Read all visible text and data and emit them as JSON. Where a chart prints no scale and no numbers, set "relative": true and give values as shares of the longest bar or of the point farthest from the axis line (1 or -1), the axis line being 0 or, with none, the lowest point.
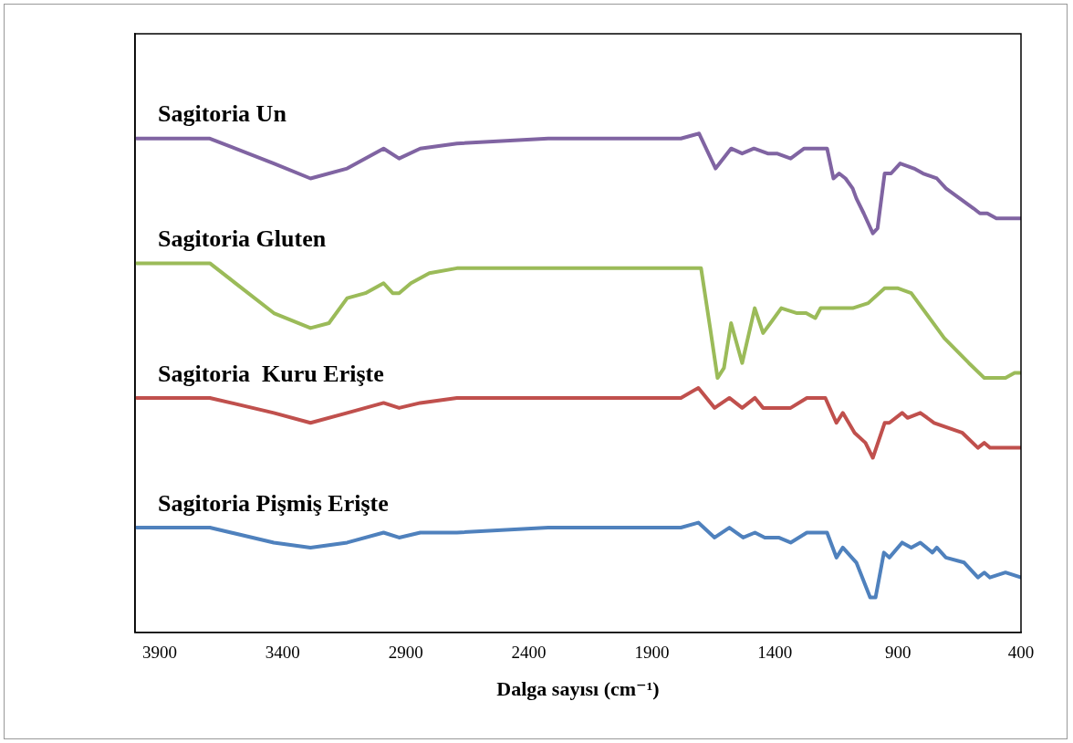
{
  "chart_data": {
    "type": "line",
    "relative": true,
    "xlabel": "Dalga sayısı (cm⁻¹)",
    "xlim": [
      4000,
      400
    ],
    "xticks": [
      3900,
      3400,
      2900,
      2400,
      1900,
      1400,
      900,
      400
    ],
    "series": [
      {
        "name": "Sagitoria Un",
        "color": "#8064a2",
        "x": [
          3993,
          3696,
          3436,
          3287,
          3138,
          2990,
          2927,
          2841,
          2692,
          2321,
          1949,
          1782,
          1708,
          1641,
          1578,
          1533,
          1485,
          1429,
          1392,
          1336,
          1281,
          1225,
          1188,
          1162,
          1139,
          1113,
          1084,
          1069,
          1039,
          1002,
          983,
          954,
          928,
          891,
          835,
          798,
          742,
          705,
          649,
          593,
          567,
          537,
          500,
          463,
          400
        ],
        "values": [
          0.99,
          0.99,
          0.94,
          0.91,
          0.93,
          0.97,
          0.95,
          0.97,
          0.98,
          0.99,
          0.99,
          0.99,
          1.0,
          0.93,
          0.97,
          0.96,
          0.97,
          0.96,
          0.96,
          0.95,
          0.97,
          0.97,
          0.97,
          0.91,
          0.92,
          0.91,
          0.89,
          0.87,
          0.84,
          0.8,
          0.81,
          0.92,
          0.92,
          0.94,
          0.93,
          0.92,
          0.91,
          0.89,
          0.87,
          0.85,
          0.84,
          0.84,
          0.83,
          0.83,
          0.83
        ]
      },
      {
        "name": "Sagitoria Gluten",
        "color": "#9bbb59",
        "x": [
          3993,
          3696,
          3436,
          3287,
          3212,
          3138,
          3064,
          2990,
          2953,
          2927,
          2879,
          2804,
          2692,
          2321,
          1782,
          1700,
          1663,
          1633,
          1607,
          1578,
          1533,
          1482,
          1448,
          1418,
          1374,
          1310,
          1273,
          1236,
          1214,
          1084,
          1021,
          954,
          902,
          846,
          712,
          612,
          549,
          463,
          426,
          400
        ],
        "values": [
          0.74,
          0.74,
          0.64,
          0.61,
          0.62,
          0.67,
          0.68,
          0.7,
          0.68,
          0.68,
          0.7,
          0.72,
          0.73,
          0.73,
          0.73,
          0.73,
          0.61,
          0.51,
          0.53,
          0.62,
          0.54,
          0.65,
          0.6,
          0.62,
          0.65,
          0.64,
          0.64,
          0.63,
          0.65,
          0.65,
          0.66,
          0.69,
          0.69,
          0.68,
          0.59,
          0.54,
          0.51,
          0.51,
          0.52,
          0.52
        ]
      },
      {
        "name": "Sagitoria  Kuru Erişte",
        "color": "#c0504d",
        "x": [
          3993,
          3696,
          3436,
          3287,
          3138,
          2990,
          2927,
          2841,
          2692,
          2321,
          1782,
          1711,
          1645,
          1585,
          1533,
          1481,
          1448,
          1385,
          1336,
          1270,
          1195,
          1150,
          1124,
          1076,
          1032,
          1002,
          954,
          935,
          883,
          861,
          809,
          753,
          697,
          638,
          575,
          549,
          526,
          463,
          400
        ],
        "values": [
          0.47,
          0.47,
          0.44,
          0.42,
          0.44,
          0.46,
          0.45,
          0.46,
          0.47,
          0.47,
          0.47,
          0.49,
          0.45,
          0.47,
          0.45,
          0.47,
          0.45,
          0.45,
          0.45,
          0.47,
          0.47,
          0.42,
          0.44,
          0.4,
          0.38,
          0.35,
          0.42,
          0.42,
          0.44,
          0.43,
          0.44,
          0.42,
          0.41,
          0.4,
          0.37,
          0.38,
          0.37,
          0.37,
          0.37
        ]
      },
      {
        "name": "Sagitoria Pişmiş Erişte",
        "color": "#4f81bd",
        "x": [
          3993,
          3696,
          3436,
          3287,
          3138,
          2990,
          2927,
          2841,
          2692,
          2321,
          1782,
          1711,
          1645,
          1585,
          1529,
          1481,
          1441,
          1385,
          1336,
          1270,
          1188,
          1150,
          1124,
          1069,
          1013,
          991,
          957,
          935,
          883,
          846,
          809,
          760,
          742,
          705,
          631,
          575,
          549,
          526,
          463,
          400
        ],
        "values": [
          0.21,
          0.21,
          0.18,
          0.17,
          0.18,
          0.2,
          0.19,
          0.2,
          0.2,
          0.21,
          0.21,
          0.22,
          0.19,
          0.21,
          0.19,
          0.2,
          0.19,
          0.19,
          0.18,
          0.2,
          0.2,
          0.15,
          0.17,
          0.14,
          0.07,
          0.07,
          0.16,
          0.15,
          0.18,
          0.17,
          0.18,
          0.16,
          0.17,
          0.15,
          0.14,
          0.11,
          0.12,
          0.11,
          0.12,
          0.11
        ]
      }
    ]
  }
}
